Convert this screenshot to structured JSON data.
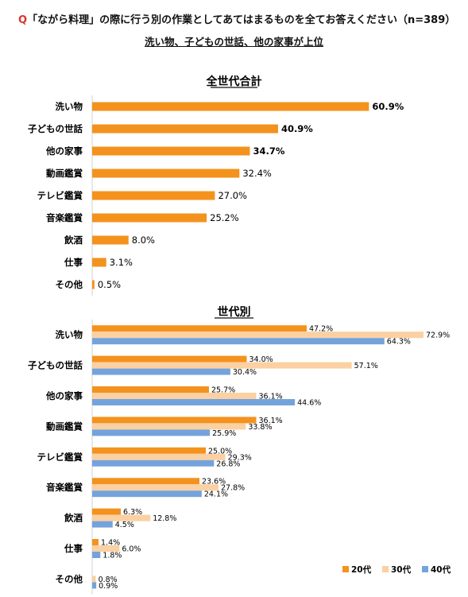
{
  "header": {
    "q_mark": "Q",
    "question": "「ながら料理」の際に行う別の作業としてあてはまるものを全てお答えください（n=389）",
    "subtitle": "洗い物、子どもの世話、他の家事が上位"
  },
  "chart_data": [
    {
      "type": "bar",
      "orientation": "horizontal",
      "title": "全世代合計",
      "categories": [
        "洗い物",
        "子どもの世話",
        "他の家事",
        "動画鑑賞",
        "テレビ鑑賞",
        "音楽鑑賞",
        "飲酒",
        "仕事",
        "その他"
      ],
      "values": [
        60.9,
        40.9,
        34.7,
        32.4,
        27.0,
        25.2,
        8.0,
        3.1,
        0.5
      ],
      "value_labels": [
        "60.9%",
        "40.9%",
        "34.7%",
        "32.4%",
        "27.0%",
        "25.2%",
        "8.0%",
        "3.1%",
        "0.5%"
      ],
      "highlighted_labels": [
        0,
        1,
        2
      ],
      "color": "#f4921e",
      "unit": "%"
    },
    {
      "type": "bar",
      "orientation": "horizontal",
      "title": "世代別",
      "categories": [
        "洗い物",
        "子どもの世話",
        "他の家事",
        "動画鑑賞",
        "テレビ鑑賞",
        "音楽鑑賞",
        "飲酒",
        "仕事",
        "その他"
      ],
      "series": [
        {
          "name": "20代",
          "color": "#f4921e",
          "values": [
            47.2,
            34.0,
            25.7,
            36.1,
            25.0,
            23.6,
            6.3,
            1.4,
            0.0
          ],
          "labels": [
            "47.2%",
            "34.0%",
            "25.7%",
            "36.1%",
            "25.0%",
            "23.6%",
            "6.3%",
            "1.4%",
            ""
          ]
        },
        {
          "name": "30代",
          "color": "#fbd0a2",
          "values": [
            72.9,
            57.1,
            36.1,
            33.8,
            29.3,
            27.8,
            12.8,
            6.0,
            0.8
          ],
          "labels": [
            "72.9%",
            "57.1%",
            "36.1%",
            "33.8%",
            "29.3%",
            "27.8%",
            "12.8%",
            "6.0%",
            "0.8%"
          ]
        },
        {
          "name": "40代",
          "color": "#74a3dc",
          "values": [
            64.3,
            30.4,
            44.6,
            25.9,
            26.8,
            24.1,
            4.5,
            1.8,
            0.9
          ],
          "labels": [
            "64.3%",
            "30.4%",
            "44.6%",
            "25.9%",
            "26.8%",
            "24.1%",
            "4.5%",
            "1.8%",
            "0.9%"
          ]
        }
      ],
      "legend_position": "bottom-right",
      "unit": "%"
    }
  ]
}
